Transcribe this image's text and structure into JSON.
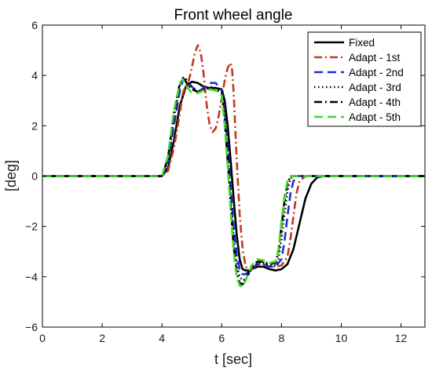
{
  "chart_data": {
    "type": "line",
    "title": "Front wheel angle",
    "xlabel": "t [sec]",
    "ylabel": "[deg]",
    "xlim": [
      0,
      12.8
    ],
    "ylim": [
      -6,
      6
    ],
    "xticks": [
      0,
      2,
      4,
      6,
      8,
      10,
      12
    ],
    "yticks": [
      -6,
      -4,
      -2,
      0,
      2,
      4,
      6
    ],
    "grid": false,
    "legend_position": "top-right",
    "series": [
      {
        "name": "Fixed",
        "color": "#000000",
        "dash": "solid",
        "x": [
          0,
          4.0,
          4.2,
          4.4,
          4.6,
          4.8,
          5.0,
          5.2,
          5.4,
          5.6,
          5.8,
          6.0,
          6.1,
          6.2,
          6.3,
          6.4,
          6.5,
          6.6,
          6.7,
          6.8,
          6.9,
          7.0,
          7.2,
          7.4,
          7.6,
          7.8,
          8.0,
          8.2,
          8.4,
          8.6,
          8.8,
          9.0,
          9.2,
          9.4,
          12.8
        ],
        "y": [
          0,
          0,
          0.3,
          1.4,
          2.8,
          3.55,
          3.75,
          3.7,
          3.55,
          3.5,
          3.5,
          3.45,
          3.0,
          2.0,
          0.6,
          -0.9,
          -2.3,
          -3.3,
          -3.7,
          -3.75,
          -3.75,
          -3.7,
          -3.6,
          -3.6,
          -3.7,
          -3.75,
          -3.7,
          -3.5,
          -2.9,
          -1.9,
          -0.9,
          -0.3,
          -0.05,
          0,
          0
        ]
      },
      {
        "name": "Adapt - 1st",
        "color": "#c0391f",
        "dash": "dashdot",
        "x": [
          0,
          4.0,
          4.2,
          4.4,
          4.6,
          4.7,
          4.8,
          4.9,
          5.0,
          5.1,
          5.2,
          5.3,
          5.4,
          5.5,
          5.6,
          5.7,
          5.8,
          5.9,
          6.0,
          6.1,
          6.2,
          6.3,
          6.35,
          6.4,
          6.5,
          6.6,
          6.7,
          6.8,
          6.9,
          7.0,
          7.2,
          7.4,
          7.6,
          7.8,
          8.0,
          8.2,
          8.3,
          8.4,
          8.5,
          8.6,
          8.8,
          9.0,
          12.8
        ],
        "y": [
          0,
          0,
          0.2,
          1.1,
          2.5,
          3.3,
          3.6,
          3.8,
          4.3,
          4.9,
          5.2,
          4.9,
          4.0,
          2.8,
          2.0,
          1.75,
          1.9,
          2.4,
          3.1,
          3.8,
          4.3,
          4.5,
          4.2,
          3.3,
          0.7,
          -1.5,
          -2.9,
          -3.6,
          -3.75,
          -3.7,
          -3.5,
          -3.5,
          -3.6,
          -3.6,
          -3.55,
          -3.2,
          -2.5,
          -1.6,
          -0.7,
          -0.2,
          0,
          0,
          0
        ]
      },
      {
        "name": "Adapt - 2nd",
        "color": "#1f2fd6",
        "dash": "dash",
        "x": [
          0,
          4.0,
          4.2,
          4.4,
          4.6,
          4.7,
          4.8,
          5.0,
          5.2,
          5.4,
          5.6,
          5.8,
          6.0,
          6.1,
          6.2,
          6.3,
          6.4,
          6.5,
          6.6,
          6.7,
          6.8,
          6.9,
          7.0,
          7.2,
          7.4,
          7.6,
          7.8,
          8.0,
          8.1,
          8.2,
          8.3,
          8.4,
          8.5,
          8.6,
          12.8
        ],
        "y": [
          0,
          0,
          0.5,
          2.0,
          3.4,
          3.8,
          3.85,
          3.55,
          3.35,
          3.5,
          3.7,
          3.7,
          3.4,
          2.6,
          1.2,
          -0.5,
          -2.0,
          -3.1,
          -3.7,
          -3.9,
          -3.9,
          -3.8,
          -3.65,
          -3.5,
          -3.5,
          -3.6,
          -3.6,
          -3.3,
          -2.6,
          -1.6,
          -0.7,
          -0.2,
          0,
          0,
          0
        ]
      },
      {
        "name": "Adapt - 3rd",
        "color": "#000000",
        "dash": "dot",
        "x": [
          0,
          4.0,
          4.2,
          4.4,
          4.6,
          4.7,
          4.8,
          5.0,
          5.2,
          5.4,
          5.6,
          5.8,
          6.0,
          6.1,
          6.2,
          6.3,
          6.4,
          6.5,
          6.6,
          6.7,
          6.8,
          6.9,
          7.0,
          7.2,
          7.4,
          7.6,
          7.8,
          7.9,
          8.0,
          8.1,
          8.2,
          8.3,
          8.4,
          12.8
        ],
        "y": [
          0,
          0,
          0.6,
          2.3,
          3.6,
          3.9,
          3.85,
          3.5,
          3.35,
          3.45,
          3.55,
          3.5,
          3.35,
          2.5,
          1.0,
          -0.8,
          -2.4,
          -3.5,
          -4.0,
          -4.15,
          -4.1,
          -3.9,
          -3.7,
          -3.5,
          -3.45,
          -3.55,
          -3.55,
          -3.3,
          -2.5,
          -1.5,
          -0.6,
          -0.1,
          0,
          0
        ]
      },
      {
        "name": "Adapt - 4th",
        "color": "#000000",
        "dash": "dashdot",
        "x": [
          0,
          4.0,
          4.2,
          4.4,
          4.6,
          4.7,
          4.8,
          5.0,
          5.2,
          5.4,
          5.6,
          5.8,
          6.0,
          6.1,
          6.2,
          6.3,
          6.4,
          6.5,
          6.6,
          6.7,
          6.8,
          6.9,
          7.0,
          7.2,
          7.4,
          7.6,
          7.8,
          7.9,
          8.0,
          8.1,
          8.2,
          8.3,
          12.8
        ],
        "y": [
          0,
          0,
          0.7,
          2.5,
          3.7,
          3.9,
          3.75,
          3.45,
          3.35,
          3.4,
          3.5,
          3.45,
          3.3,
          2.2,
          0.6,
          -1.2,
          -2.8,
          -3.8,
          -4.25,
          -4.3,
          -4.1,
          -3.85,
          -3.6,
          -3.4,
          -3.4,
          -3.5,
          -3.45,
          -3.0,
          -2.0,
          -1.0,
          -0.3,
          0,
          0
        ]
      },
      {
        "name": "Adapt - 5th",
        "color": "#3ddc2e",
        "dash": "dash",
        "x": [
          0,
          4.0,
          4.2,
          4.4,
          4.6,
          4.7,
          4.8,
          5.0,
          5.2,
          5.4,
          5.6,
          5.8,
          6.0,
          6.1,
          6.2,
          6.3,
          6.4,
          6.5,
          6.6,
          6.7,
          6.8,
          6.9,
          7.0,
          7.2,
          7.4,
          7.6,
          7.8,
          7.9,
          8.0,
          8.1,
          8.2,
          8.3,
          12.8
        ],
        "y": [
          0,
          0,
          0.8,
          2.6,
          3.7,
          3.85,
          3.6,
          3.3,
          3.3,
          3.4,
          3.45,
          3.4,
          3.2,
          2.0,
          0.4,
          -1.4,
          -3.0,
          -4.0,
          -4.35,
          -4.4,
          -4.15,
          -3.85,
          -3.55,
          -3.3,
          -3.35,
          -3.45,
          -3.4,
          -2.9,
          -1.8,
          -0.8,
          -0.2,
          0,
          0
        ]
      }
    ]
  }
}
